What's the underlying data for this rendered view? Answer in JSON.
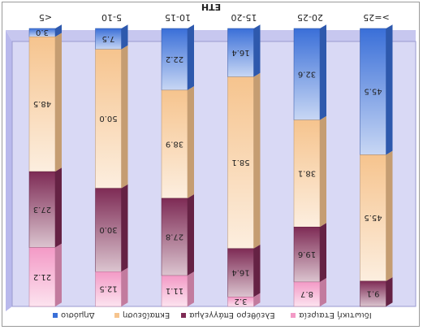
{
  "chart_data": {
    "type": "bar",
    "stacked": true,
    "orientation": "mirrored",
    "title": "ΕΤΗ",
    "categories": [
      "<5",
      "5-10",
      "10-15",
      "15-20",
      "20-25",
      ">=25"
    ],
    "series": [
      {
        "name": "Δημόσιο",
        "color": "#3a6fd8",
        "values": [
          3.0,
          7.5,
          22.2,
          16.4,
          32.6,
          45.5
        ]
      },
      {
        "name": "Εκπαίδευση",
        "color": "#f6c48e",
        "values": [
          48.5,
          50.0,
          38.9,
          58.1,
          38.1,
          45.5
        ]
      },
      {
        "name": "Ελεύθερο Επάγγελμα",
        "color": "#7e2b55",
        "values": [
          27.3,
          30.0,
          27.8,
          16.4,
          19.6,
          9.1
        ]
      },
      {
        "name": "Ιδιωτική Εταιρεία",
        "color": "#f39ac6",
        "values": [
          21.2,
          12.5,
          11.1,
          3.2,
          8.7,
          0.0
        ]
      }
    ],
    "labels": [
      [
        "3.0",
        "7.5",
        "22.2",
        "16.4",
        "32.6",
        "45.5"
      ],
      [
        "48.5",
        "50.0",
        "38.9",
        "58.1",
        "38.1",
        "45.5"
      ],
      [
        "27.3",
        "30.0",
        "27.8",
        "16.4",
        "19.6",
        "9.1"
      ],
      [
        "21.2",
        "12.5",
        "11.1",
        "3.2",
        "8.7",
        ""
      ]
    ],
    "ylim": [
      0,
      100
    ],
    "legend_position": "bottom",
    "grid": false
  }
}
